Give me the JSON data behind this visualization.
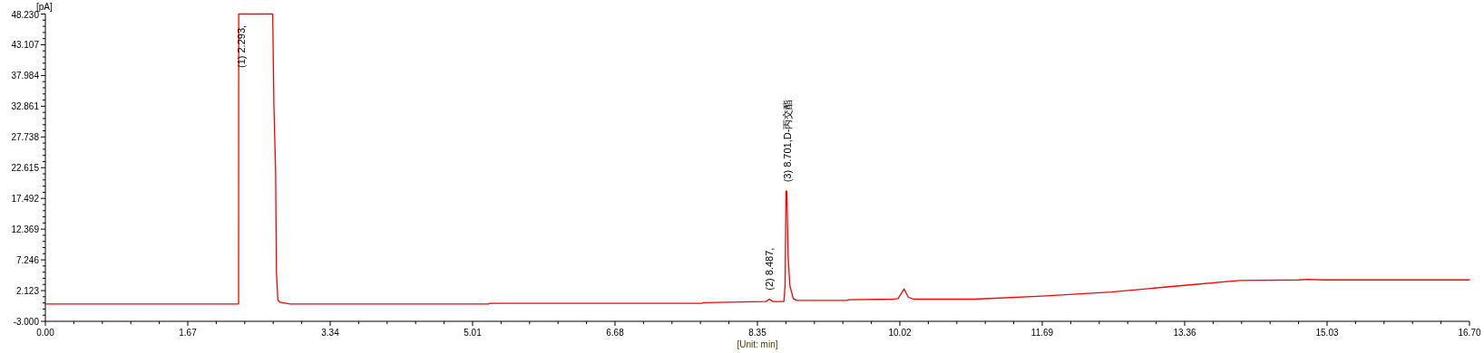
{
  "chart_data": {
    "type": "line",
    "xlabel": "[Unit: min]",
    "ylabel": "[pA]",
    "x": [
      0,
      2.266,
      2.267,
      2.666,
      2.68,
      2.7,
      2.71,
      2.727,
      2.75,
      2.87,
      5.2,
      5.21,
      7.7,
      7.72,
      8.45,
      8.49,
      8.53,
      8.66,
      8.675,
      8.685,
      8.695,
      8.71,
      8.73,
      8.77,
      8.81,
      9.4,
      9.42,
      9.95,
      10.0,
      10.07,
      10.12,
      10.18,
      10.9,
      11.69,
      12.5,
      13.36,
      14.0,
      14.7,
      14.8,
      15.0,
      16.7
    ],
    "series": [
      {
        "color": "#ff0000",
        "values": [
          -0.1,
          -0.1,
          48.23,
          48.23,
          33.1,
          22.1,
          5.1,
          0.5,
          0.2,
          -0.1,
          -0.1,
          0,
          0,
          0.1,
          0.3,
          0.7,
          0.3,
          0.3,
          3,
          18.7,
          18.7,
          8,
          3,
          0.8,
          0.5,
          0.5,
          0.6,
          0.7,
          0.8,
          2.4,
          1.0,
          0.7,
          0.7,
          1.2,
          1.9,
          3.0,
          3.8,
          3.9,
          4.0,
          3.9,
          3.9
        ]
      }
    ],
    "xlim": [
      0,
      16.7
    ],
    "ylim": [
      -3,
      48.23
    ],
    "xticks": [
      {
        "value": 0,
        "label": "0.00"
      },
      1.67,
      3.34,
      5.01,
      6.68,
      8.35,
      10.02,
      11.69,
      13.36,
      15.03,
      {
        "value": 16.7,
        "label": "16.70"
      },
      {
        "value": 0.334,
        "label": null
      },
      {
        "value": 0.668,
        "label": null
      },
      {
        "value": 1.002,
        "label": null
      },
      {
        "value": 1.336,
        "label": null
      },
      {
        "value": 2.004,
        "label": null
      },
      {
        "value": 2.338,
        "label": null
      },
      {
        "value": 2.672,
        "label": null
      },
      {
        "value": 3.006,
        "label": null
      },
      {
        "value": 3.674,
        "label": null
      },
      {
        "value": 4.008,
        "label": null
      },
      {
        "value": 4.342,
        "label": null
      },
      {
        "value": 4.676,
        "label": null
      },
      {
        "value": 5.344,
        "label": null
      },
      {
        "value": 5.678,
        "label": null
      },
      {
        "value": 6.012,
        "label": null
      },
      {
        "value": 6.346,
        "label": null
      },
      {
        "value": 7.014,
        "label": null
      },
      {
        "value": 7.348,
        "label": null
      },
      {
        "value": 7.682,
        "label": null
      },
      {
        "value": 8.016,
        "label": null
      },
      {
        "value": 8.684,
        "label": null
      },
      {
        "value": 9.018,
        "label": null
      },
      {
        "value": 9.352,
        "label": null
      },
      {
        "value": 9.686,
        "label": null
      },
      {
        "value": 10.354,
        "label": null
      },
      {
        "value": 10.688,
        "label": null
      },
      {
        "value": 11.022,
        "label": null
      },
      {
        "value": 11.356,
        "label": null
      },
      {
        "value": 12.024,
        "label": null
      },
      {
        "value": 12.358,
        "label": null
      },
      {
        "value": 12.692,
        "label": null
      },
      {
        "value": 13.026,
        "label": null
      },
      {
        "value": 13.694,
        "label": null
      },
      {
        "value": 14.028,
        "label": null
      },
      {
        "value": 14.362,
        "label": null
      },
      {
        "value": 14.696,
        "label": null
      },
      {
        "value": 15.364,
        "label": null
      },
      {
        "value": 15.698,
        "label": null
      },
      {
        "value": 16.032,
        "label": null
      },
      {
        "value": 16.366,
        "label": null
      }
    ],
    "yticks": [
      {
        "value": -3,
        "label": "-3.000"
      },
      2.123,
      7.246,
      12.369,
      17.492,
      22.615,
      27.738,
      32.861,
      37.984,
      43.107,
      {
        "value": 48.23,
        "label": "48.230"
      },
      {
        "value": -1.975,
        "label": null
      },
      {
        "value": -0.951,
        "label": null
      },
      {
        "value": 0.074,
        "label": null
      },
      {
        "value": 1.098,
        "label": null
      },
      {
        "value": 3.148,
        "label": null
      },
      {
        "value": 4.172,
        "label": null
      },
      {
        "value": 5.197,
        "label": null
      },
      {
        "value": 6.221,
        "label": null
      },
      {
        "value": 8.271,
        "label": null
      },
      {
        "value": 9.295,
        "label": null
      },
      {
        "value": 10.32,
        "label": null
      },
      {
        "value": 11.344,
        "label": null
      },
      {
        "value": 13.394,
        "label": null
      },
      {
        "value": 14.418,
        "label": null
      },
      {
        "value": 15.443,
        "label": null
      },
      {
        "value": 16.467,
        "label": null
      },
      {
        "value": 18.517,
        "label": null
      },
      {
        "value": 19.541,
        "label": null
      },
      {
        "value": 20.566,
        "label": null
      },
      {
        "value": 21.59,
        "label": null
      },
      {
        "value": 23.64,
        "label": null
      },
      {
        "value": 24.664,
        "label": null
      },
      {
        "value": 25.689,
        "label": null
      },
      {
        "value": 26.713,
        "label": null
      },
      {
        "value": 28.763,
        "label": null
      },
      {
        "value": 29.787,
        "label": null
      },
      {
        "value": 30.812,
        "label": null
      },
      {
        "value": 31.836,
        "label": null
      },
      {
        "value": 33.886,
        "label": null
      },
      {
        "value": 34.91,
        "label": null
      },
      {
        "value": 35.935,
        "label": null
      },
      {
        "value": 36.959,
        "label": null
      },
      {
        "value": 39.009,
        "label": null
      },
      {
        "value": 40.033,
        "label": null
      },
      {
        "value": 41.058,
        "label": null
      },
      {
        "value": 42.082,
        "label": null
      },
      {
        "value": 44.132,
        "label": null
      },
      {
        "value": 45.156,
        "label": null
      },
      {
        "value": 46.181,
        "label": null
      },
      {
        "value": 47.205,
        "label": null
      }
    ],
    "annotations": [
      {
        "text": "(1) 2.293,",
        "x": 2.293,
        "y": 48.23
      },
      {
        "text": "(2) 8.487,",
        "x": 8.487,
        "y": 0.67
      },
      {
        "text": "(3) 8.701,D-丙交酯",
        "x": 8.701,
        "y": 18.68
      }
    ],
    "marker": "none",
    "line_style": "solid"
  }
}
